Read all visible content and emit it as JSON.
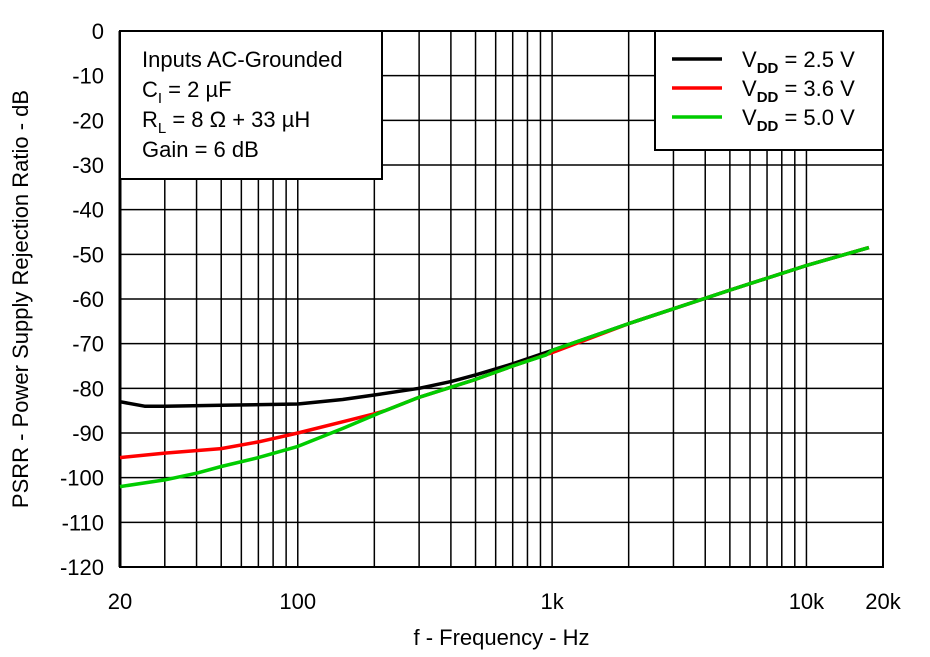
{
  "chart_data": {
    "type": "line",
    "title": "",
    "xlabel": "f - Frequency - Hz",
    "ylabel": "PSRR - Power Supply Rejection Ratio - dB",
    "xscale": "log",
    "xlim": [
      20,
      20000
    ],
    "ylim": [
      -120,
      0
    ],
    "grid": true,
    "x_ticks": [
      {
        "v": 20,
        "label": "20"
      },
      {
        "v": 100,
        "label": "100"
      },
      {
        "v": 1000,
        "label": "1k"
      },
      {
        "v": 10000,
        "label": "10k"
      },
      {
        "v": 20000,
        "label": "20k"
      }
    ],
    "y_ticks": [
      0,
      -10,
      -20,
      -30,
      -40,
      -50,
      -60,
      -70,
      -80,
      -90,
      -100,
      -110,
      -120
    ],
    "annotation": [
      "Inputs AC-Grounded",
      "C_I = 2 µF",
      "R_L = 8 Ω + 33 µH",
      "Gain = 6 dB"
    ],
    "annotation_parts": [
      {
        "text": "Inputs AC-Grounded"
      },
      {
        "main": "C",
        "sub": "I",
        "rest": " = 2 µF"
      },
      {
        "main": "R",
        "sub": "L",
        "rest": " = 8 Ω + 33 µH"
      },
      {
        "text": "Gain = 6 dB"
      }
    ],
    "legend_placement": "top-right",
    "series": [
      {
        "name": "VDD = 2.5 V",
        "legend_main": "V",
        "legend_sub": "DD",
        "legend_rest": " = 2.5 V",
        "color": "#000000",
        "x": [
          20,
          25,
          30,
          50,
          100,
          150,
          200,
          300,
          400,
          500,
          700,
          1000,
          2000,
          5000,
          10000,
          17600
        ],
        "y": [
          -83,
          -84,
          -84,
          -83.8,
          -83.5,
          -82.5,
          -81.5,
          -80,
          -78.5,
          -77,
          -74.5,
          -71.5,
          -65.5,
          -58,
          -52.5,
          -48.5
        ]
      },
      {
        "name": "VDD = 3.6 V",
        "legend_main": "V",
        "legend_sub": "DD",
        "legend_rest": " = 3.6 V",
        "color": "#ff0000",
        "x": [
          20,
          30,
          50,
          70,
          100,
          150,
          200,
          220,
          300,
          500,
          700,
          1000,
          2000,
          5000,
          10000,
          17600
        ],
        "y": [
          -95.5,
          -94.5,
          -93.5,
          -92,
          -90,
          -87.5,
          -85.7,
          -85,
          -82,
          -78,
          -75,
          -72,
          -65.5,
          -58,
          -52.5,
          -48.5
        ]
      },
      {
        "name": "VDD = 5.0 V",
        "legend_main": "V",
        "legend_sub": "DD",
        "legend_rest": " = 5.0 V",
        "color": "#00cc00",
        "x": [
          20,
          30,
          40,
          50,
          70,
          100,
          150,
          200,
          220,
          300,
          500,
          700,
          950,
          1000,
          2000,
          5000,
          10000,
          17600
        ],
        "y": [
          -102,
          -100.5,
          -99,
          -97.5,
          -95.5,
          -93,
          -89,
          -86,
          -85,
          -82,
          -78,
          -75,
          -72.5,
          -71.5,
          -65.5,
          -58,
          -52.5,
          -48.5
        ]
      }
    ]
  }
}
